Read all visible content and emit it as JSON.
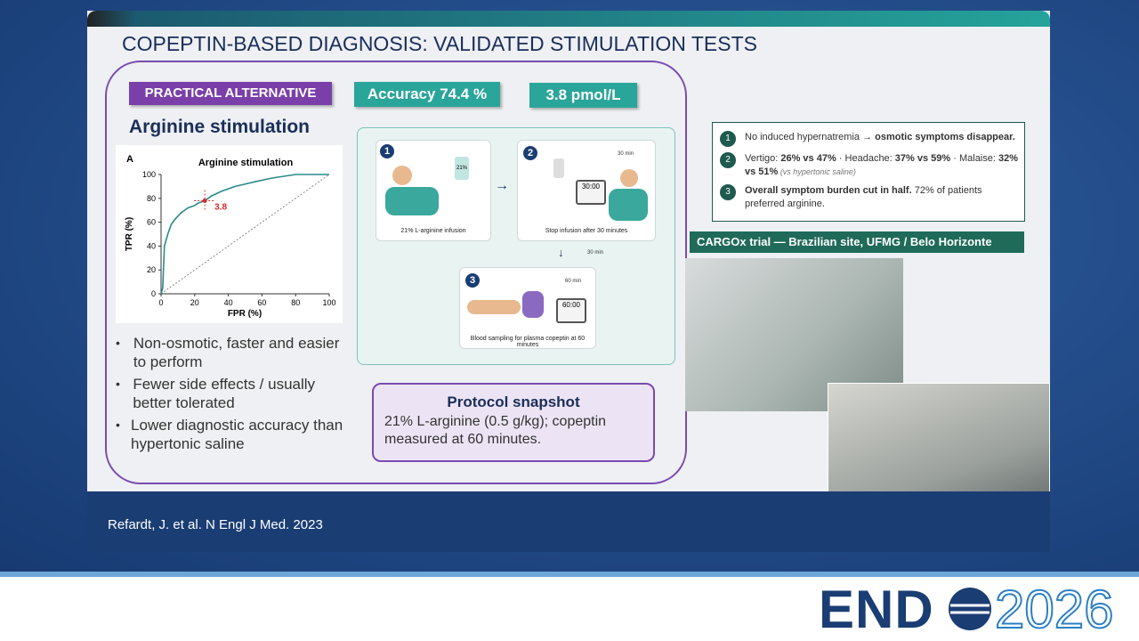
{
  "slide": {
    "title": "COPEPTIN-BASED DIAGNOSIS: VALIDATED STIMULATION TESTS",
    "badges": [
      "PRACTICAL ALTERNATIVE",
      "Accuracy 74.4 %",
      "3.8 pmol/L"
    ],
    "heading": "Arginine stimulation",
    "roc_chart": {
      "type": "line",
      "panel": "A",
      "title": "Arginine stimulation",
      "xlabel": "FPR (%)",
      "ylabel": "TPR (%)",
      "x": [
        0,
        1,
        2,
        4,
        6,
        8,
        12,
        16,
        20,
        22,
        26,
        30,
        36,
        44,
        50,
        56,
        66,
        80,
        100
      ],
      "y": [
        0,
        5,
        40,
        50,
        58,
        62,
        68,
        72,
        74,
        76,
        78,
        82,
        86,
        90,
        92,
        94,
        97,
        100,
        100
      ],
      "color": "#2a8a8a",
      "xlim": [
        0,
        100
      ],
      "ylim": [
        0,
        100
      ],
      "xticks": [
        0,
        20,
        40,
        60,
        80,
        100
      ],
      "yticks": [
        0,
        20,
        40,
        60,
        80,
        100
      ],
      "cutoff": {
        "x": 26,
        "y": 78,
        "label": "3.8",
        "color": "#d62b2b"
      }
    },
    "bullets": [
      "Non-osmotic, faster and easier to perform",
      "Fewer side effects / usually better tolerated",
      "Lower diagnostic accuracy than hypertonic saline"
    ],
    "protocol": {
      "steps": [
        {
          "number": "1",
          "caption": "21% L-arginine infusion",
          "bag": "21%"
        },
        {
          "number": "2",
          "caption": "Stop infusion after 30 minutes",
          "clock": "30 min",
          "display": "30:00"
        },
        {
          "number": "3",
          "caption": "Blood sampling for plasma copeptin at 60 minutes",
          "clock": "60 min",
          "display": "60:00"
        }
      ],
      "interval": "30 min"
    },
    "snapshot": {
      "title": "Protocol snapshot",
      "text": "21% L-arginine (0.5 g/kg); copeptin measured at 60 minutes."
    },
    "findings": [
      {
        "number": "1",
        "spans": [
          {
            "text": "No induced hypernatremia "
          },
          {
            "text": "→ osmotic symptoms disappear.",
            "style": "bold"
          }
        ]
      },
      {
        "number": "2",
        "spans": [
          {
            "text": "Vertigo: "
          },
          {
            "text": "26% vs 47%",
            "style": "bold"
          },
          {
            "text": " · Headache: "
          },
          {
            "text": "37% vs 59%",
            "style": "bold"
          },
          {
            "text": " · Malaise: "
          },
          {
            "text": "32% vs 51%",
            "style": "bold"
          },
          {
            "text": " (vs hypertonic saline)",
            "style": "italic"
          }
        ]
      },
      {
        "number": "3",
        "spans": [
          {
            "text": "Overall symptom burden cut in half.",
            "style": "bold"
          },
          {
            "text": " 72% of patients preferred arginine."
          }
        ]
      }
    ],
    "trial_banner": "CARGOx trial — Brazilian site, UFMG / Belo Horizonte",
    "citation": "Refardt, J. et al. N Engl J Med. 2023"
  },
  "logo": {
    "left": "END",
    "right": "2026"
  }
}
